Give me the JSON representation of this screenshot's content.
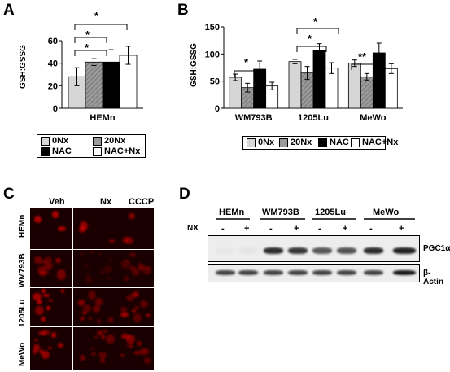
{
  "colors": {
    "ctrl": "#d6d6d6",
    "nx": "#9a9a9a",
    "nac": "#000000",
    "nacnx": "#ffffff",
    "stain": "#e60000"
  },
  "panel_a": {
    "letter": "A",
    "ylabel": "GSH:GSSG",
    "sig": [
      "*",
      "*",
      "*"
    ],
    "legend": [
      "0Nx",
      "20Nx",
      "NAC",
      "NAC+Nx"
    ]
  },
  "panel_b": {
    "letter": "B",
    "ylabel": "GSH:GSSG",
    "sig": [
      "*",
      "*",
      "*",
      "**"
    ],
    "legend": [
      "0Nx",
      "20Nx",
      "NAC",
      "NAC+Nx"
    ]
  },
  "panel_c": {
    "letter": "C",
    "cols": [
      "Veh",
      "Nx",
      "CCCP"
    ],
    "rows": [
      "HEMn",
      "WM793B",
      "1205Lu",
      "MeWo"
    ]
  },
  "panel_d": {
    "letter": "D",
    "lines": [
      "HEMn",
      "WM793B",
      "1205Lu",
      "MeWo"
    ],
    "treat_label": "NX",
    "treat_marks": [
      "-",
      "+",
      "-",
      "+",
      "-",
      "+",
      "-",
      "+"
    ],
    "blot1": "PGC1α",
    "blot2": "β-Actin",
    "pgc_levels": [
      0.02,
      0.03,
      0.9,
      0.85,
      0.7,
      0.72,
      0.9,
      0.95
    ],
    "actin_levels": [
      0.8,
      0.8,
      0.8,
      0.8,
      0.8,
      0.8,
      0.8,
      1.0
    ]
  },
  "chart_data": [
    {
      "type": "bar",
      "title": "",
      "xlabel": "",
      "ylabel": "GSH:GSSG",
      "categories": [
        "HEMn"
      ],
      "ylim": [
        0,
        60
      ],
      "yticks": [
        0,
        20,
        40,
        60
      ],
      "series": [
        {
          "name": "0Nx",
          "values": [
            28
          ],
          "errors": [
            8
          ]
        },
        {
          "name": "20Nx",
          "values": [
            41
          ],
          "errors": [
            3
          ]
        },
        {
          "name": "NAC",
          "values": [
            41
          ],
          "errors": [
            11
          ]
        },
        {
          "name": "NAC+Nx",
          "values": [
            47
          ],
          "errors": [
            8
          ]
        }
      ]
    },
    {
      "type": "bar",
      "title": "",
      "xlabel": "",
      "ylabel": "GSH:GSSG",
      "categories": [
        "WM793B",
        "1205Lu",
        "MeWo"
      ],
      "ylim": [
        0,
        150
      ],
      "yticks": [
        0,
        50,
        100,
        150
      ],
      "series": [
        {
          "name": "0Nx",
          "values": [
            57,
            86,
            83
          ],
          "errors": [
            6,
            4,
            6
          ]
        },
        {
          "name": "20Nx",
          "values": [
            38,
            65,
            58
          ],
          "errors": [
            8,
            12,
            6
          ]
        },
        {
          "name": "NAC",
          "values": [
            72,
            107,
            102
          ],
          "errors": [
            15,
            12,
            18
          ]
        },
        {
          "name": "NAC+Nx",
          "values": [
            41,
            74,
            73
          ],
          "errors": [
            7,
            10,
            9
          ]
        }
      ]
    }
  ]
}
